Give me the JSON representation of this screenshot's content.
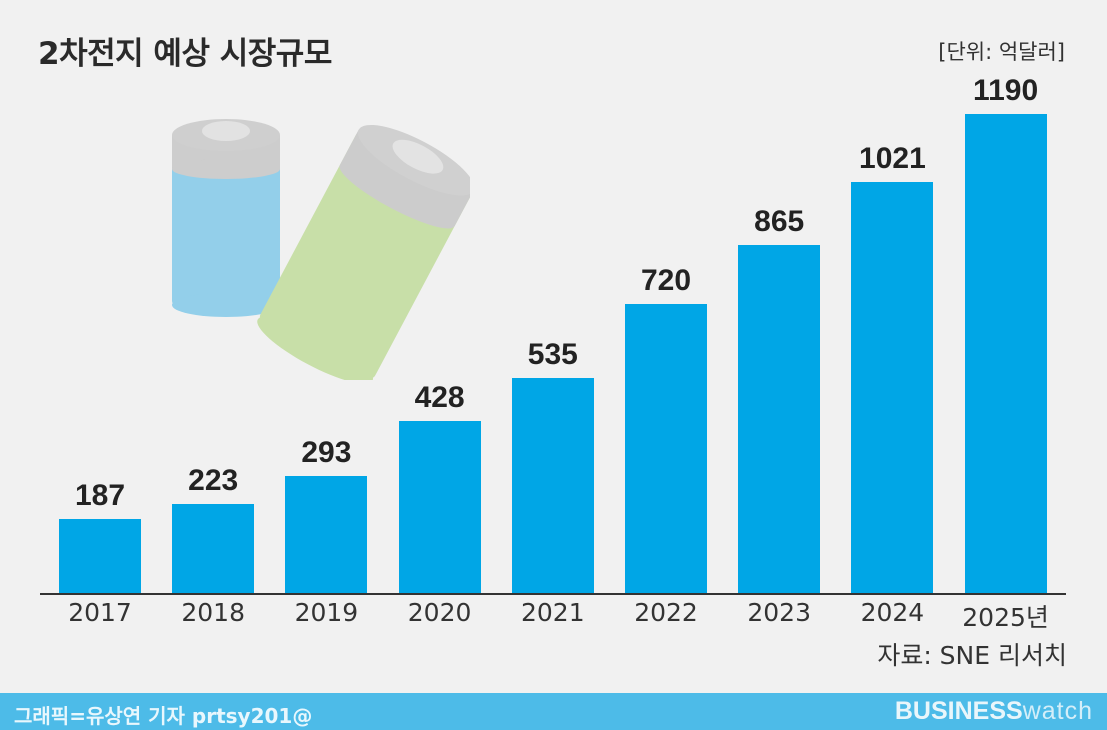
{
  "header": {
    "title": "2차전지 예상 시장규모",
    "unit": "[단위: 억달러]"
  },
  "illustration": {
    "icon": "battery-icon",
    "colors": {
      "blue_cell": "#93cfea",
      "green_cell": "#c8dfa8",
      "cap": "#cdcdcd"
    }
  },
  "chart_data": {
    "type": "bar",
    "title": "2차전지 예상 시장규모",
    "subtitle": "[단위: 억달러]",
    "categories": [
      "2017",
      "2018",
      "2019",
      "2020",
      "2021",
      "2022",
      "2023",
      "2024",
      "2025년"
    ],
    "values": [
      187,
      223,
      293,
      428,
      535,
      720,
      865,
      1021,
      1190
    ],
    "value_labels": [
      "187",
      "223",
      "293",
      "428",
      "535",
      "720",
      "865",
      "1021",
      "1190"
    ],
    "xlabel": "",
    "ylabel": "억달러",
    "ylim": [
      0,
      1190
    ],
    "grid": false,
    "legend": null,
    "bar_color": "#00a6e6",
    "source": "자료: SNE 리서치"
  },
  "footer": {
    "credit": "그래픽=유상연 기자 prtsy201@",
    "brand_bold": "BUSINESS",
    "brand_light": "watch",
    "background": "#4dbbe8"
  }
}
